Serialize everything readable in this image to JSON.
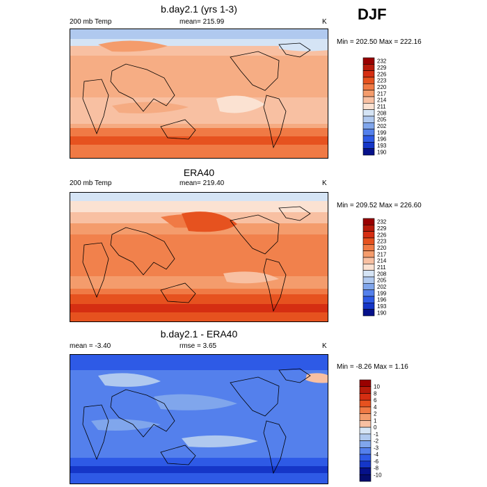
{
  "season": "DJF",
  "chart_data": [
    {
      "type": "heatmap",
      "title": "b.day2.1 (yrs 1-3)",
      "left_label": "200 mb Temp",
      "center_label": "mean= 215.99",
      "units": "K",
      "minmax": "Min = 202.50 Max = 222.16",
      "min": 202.5,
      "max": 222.16,
      "colorbar_levels": [
        "232",
        "229",
        "226",
        "223",
        "220",
        "217",
        "214",
        "211",
        "208",
        "205",
        "202",
        "199",
        "196",
        "193",
        "190"
      ],
      "colorbar_colors": [
        "#990000",
        "#b71a0a",
        "#d52e12",
        "#e6521f",
        "#f07a45",
        "#f49c6c",
        "#f8c0a2",
        "#fbe2d2",
        "#d5e4f5",
        "#b0c9ef",
        "#80a6ec",
        "#5480ec",
        "#2e5ae6",
        "#1536c8",
        "#06118a"
      ]
    },
    {
      "type": "heatmap",
      "title": "ERA40",
      "left_label": "200 mb Temp",
      "center_label": "mean= 219.40",
      "units": "K",
      "minmax": "Min = 209.52 Max = 226.60",
      "min": 209.52,
      "max": 226.6,
      "colorbar_levels": [
        "232",
        "229",
        "226",
        "223",
        "220",
        "217",
        "214",
        "211",
        "208",
        "205",
        "202",
        "199",
        "196",
        "193",
        "190"
      ],
      "colorbar_colors": [
        "#990000",
        "#b71a0a",
        "#d52e12",
        "#e6521f",
        "#f07a45",
        "#f49c6c",
        "#f8c0a2",
        "#fbe2d2",
        "#d5e4f5",
        "#b0c9ef",
        "#80a6ec",
        "#5480ec",
        "#2e5ae6",
        "#1536c8",
        "#06118a"
      ]
    },
    {
      "type": "heatmap",
      "title": "b.day2.1 - ERA40",
      "left_label": "mean =  -3.40",
      "center_label": "rmse =   3.65",
      "units": "K",
      "minmax": "Min =  -8.26 Max =   1.16",
      "min": -8.26,
      "max": 1.16,
      "colorbar_levels": [
        "10",
        "8",
        "6",
        "4",
        "2",
        "1",
        "0",
        "-1",
        "-2",
        "-3",
        "-4",
        "-6",
        "-8",
        "-10"
      ],
      "colorbar_colors": [
        "#990000",
        "#b71a0a",
        "#d52e12",
        "#e6521f",
        "#f07a45",
        "#f49c6c",
        "#f8c0a2",
        "#d5e4f5",
        "#b0c9ef",
        "#80a6ec",
        "#5480ec",
        "#2e5ae6",
        "#1536c8",
        "#06118a",
        "#040c6e"
      ]
    }
  ]
}
